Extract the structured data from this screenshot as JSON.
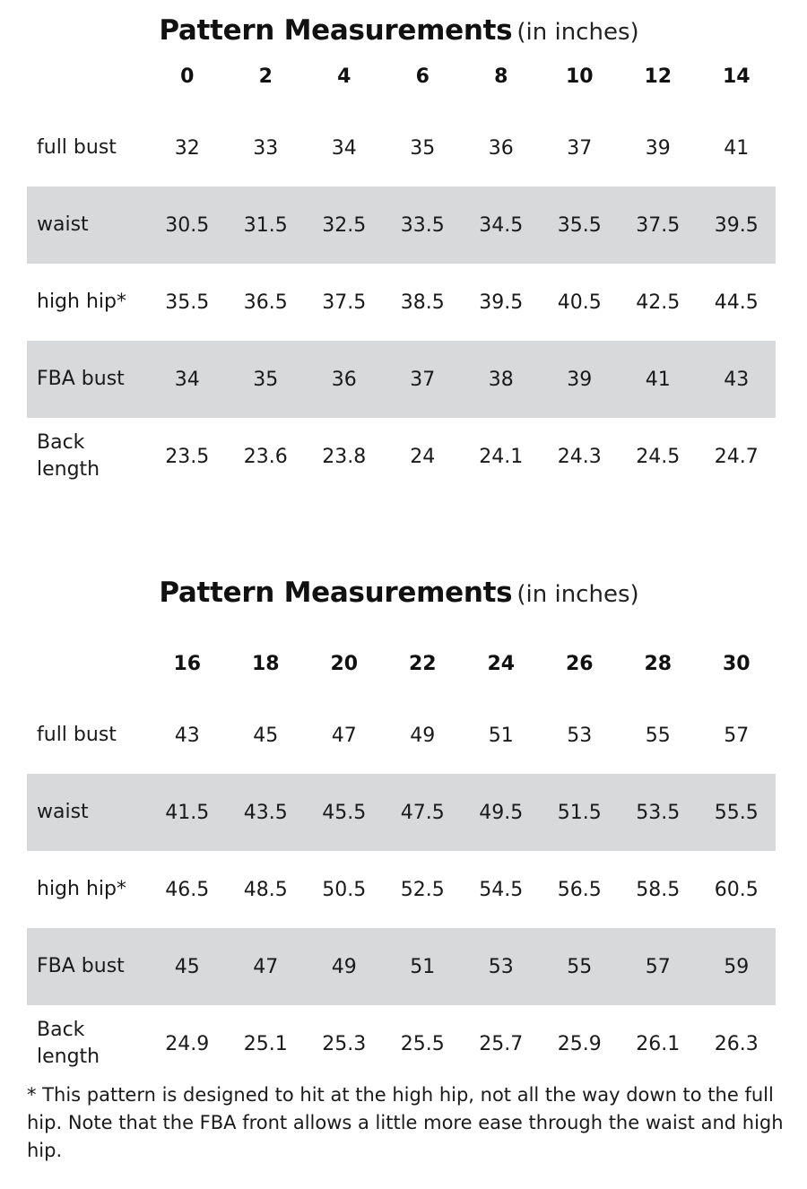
{
  "tables": [
    {
      "title_main": "Pattern Measurements",
      "title_sub": "(in inches)",
      "sizes": [
        "0",
        "2",
        "4",
        "6",
        "8",
        "10",
        "12",
        "14"
      ],
      "rows": [
        {
          "label": "full bust",
          "values": [
            "32",
            "33",
            "34",
            "35",
            "36",
            "37",
            "39",
            "41"
          ]
        },
        {
          "label": "waist",
          "values": [
            "30.5",
            "31.5",
            "32.5",
            "33.5",
            "34.5",
            "35.5",
            "37.5",
            "39.5"
          ]
        },
        {
          "label": "high hip*",
          "values": [
            "35.5",
            "36.5",
            "37.5",
            "38.5",
            "39.5",
            "40.5",
            "42.5",
            "44.5"
          ]
        },
        {
          "label": "FBA bust",
          "values": [
            "34",
            "35",
            "36",
            "37",
            "38",
            "39",
            "41",
            "43"
          ]
        },
        {
          "label": "Back length",
          "values": [
            "23.5",
            "23.6",
            "23.8",
            "24",
            "24.1",
            "24.3",
            "24.5",
            "24.7"
          ]
        }
      ]
    },
    {
      "title_main": "Pattern Measurements",
      "title_sub": "(in inches)",
      "sizes": [
        "16",
        "18",
        "20",
        "22",
        "24",
        "26",
        "28",
        "30"
      ],
      "rows": [
        {
          "label": "full bust",
          "values": [
            "43",
            "45",
            "47",
            "49",
            "51",
            "53",
            "55",
            "57"
          ]
        },
        {
          "label": "waist",
          "values": [
            "41.5",
            "43.5",
            "45.5",
            "47.5",
            "49.5",
            "51.5",
            "53.5",
            "55.5"
          ]
        },
        {
          "label": "high hip*",
          "values": [
            "46.5",
            "48.5",
            "50.5",
            "52.5",
            "54.5",
            "56.5",
            "58.5",
            "60.5"
          ]
        },
        {
          "label": "FBA bust",
          "values": [
            "45",
            "47",
            "49",
            "51",
            "53",
            "55",
            "57",
            "59"
          ]
        },
        {
          "label": "Back length",
          "values": [
            "24.9",
            "25.1",
            "25.3",
            "25.5",
            "25.7",
            "25.9",
            "26.1",
            "26.3"
          ]
        }
      ]
    }
  ],
  "footnote": "* This pattern is designed to hit at the high hip, not all the way down to the full hip.  Note that the FBA front allows a little more ease through the waist and high hip.",
  "colors": {
    "shaded_row": "#d8d9db",
    "text": "#1a1a1a"
  }
}
